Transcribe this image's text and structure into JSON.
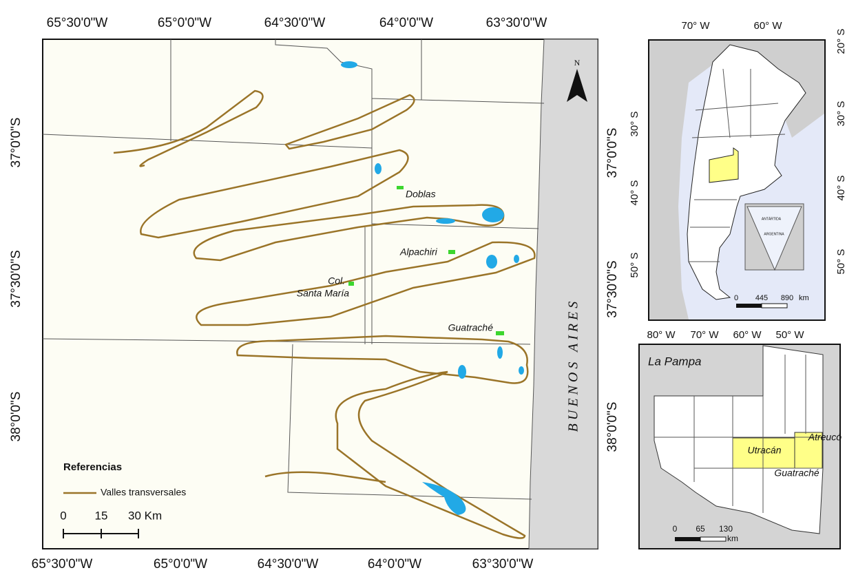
{
  "main_map": {
    "top_labels": [
      "65°30'0\"W",
      "65°0'0\"W",
      "64°30'0\"W",
      "64°0'0\"W",
      "63°30'0\"W"
    ],
    "bottom_labels": [
      "65°30'0\"W",
      "65°0'0\"W",
      "64°30'0\"W",
      "64°0'0\"W",
      "63°30'0\"W"
    ],
    "left_labels": [
      "37°0'0\"S",
      "37°30'0\"S",
      "38°0'0\"S"
    ],
    "right_labels": [
      "37°0'0\"S",
      "37°30'0\"S",
      "38°0'0\"S"
    ],
    "places": [
      "Doblas",
      "Alpachiri",
      "Col.",
      "Santa María",
      "Guatraché"
    ],
    "province": "BUENOS AIRES",
    "north": "N",
    "legend": {
      "title": "Referencias",
      "item": "Valles transversales"
    },
    "scale": [
      "0",
      "15",
      "30 Km"
    ]
  },
  "inset_argentina": {
    "top_labels": [
      "70° W",
      "60° W"
    ],
    "bottom_labels": [
      "80° W",
      "70° W",
      "60° W",
      "50° W"
    ],
    "left_labels": [
      "30° S",
      "40° S",
      "50° S"
    ],
    "right_labels": [
      "20° S",
      "30° S",
      "40° S",
      "50° S"
    ],
    "antarctic_labels": [
      "ANTÁRTIDA",
      "ARGENTINA"
    ],
    "scale": [
      "0",
      "445",
      "890",
      "km"
    ]
  },
  "inset_la_pampa": {
    "title": "La Pampa",
    "departments": [
      "Utracán",
      "Atreucó",
      "Guatraché"
    ],
    "scale": [
      "0",
      "65",
      "130",
      "km"
    ]
  }
}
